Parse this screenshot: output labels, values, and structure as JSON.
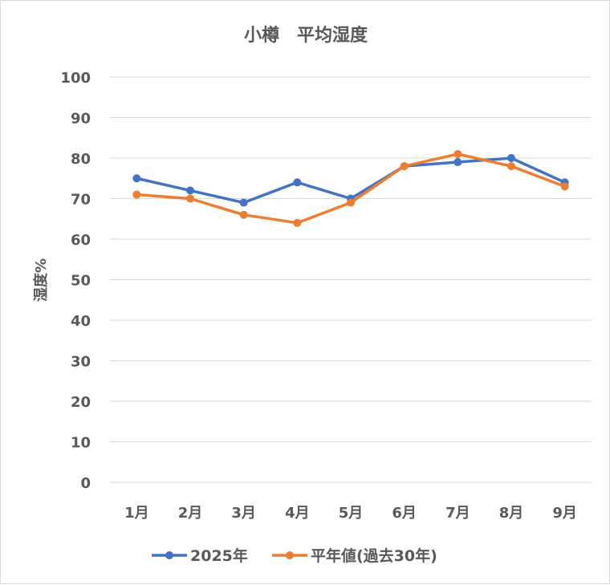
{
  "chart_data": {
    "type": "line",
    "title": "小樽　平均湿度",
    "xlabel": "",
    "ylabel": "湿度%",
    "categories": [
      "1月",
      "2月",
      "3月",
      "4月",
      "5月",
      "6月",
      "7月",
      "8月",
      "9月"
    ],
    "ylim": [
      0,
      100
    ],
    "yticks": [
      0,
      10,
      20,
      30,
      40,
      50,
      60,
      70,
      80,
      90,
      100
    ],
    "grid": true,
    "legend": "bottom",
    "series": [
      {
        "name": "2025年",
        "color": "#4472C4",
        "values": [
          75,
          72,
          69,
          74,
          70,
          78,
          79,
          80,
          74
        ]
      },
      {
        "name": "平年値(過去30年)",
        "color": "#ED7D31",
        "values": [
          71,
          70,
          66,
          64,
          69,
          78,
          81,
          78,
          73
        ]
      }
    ]
  }
}
